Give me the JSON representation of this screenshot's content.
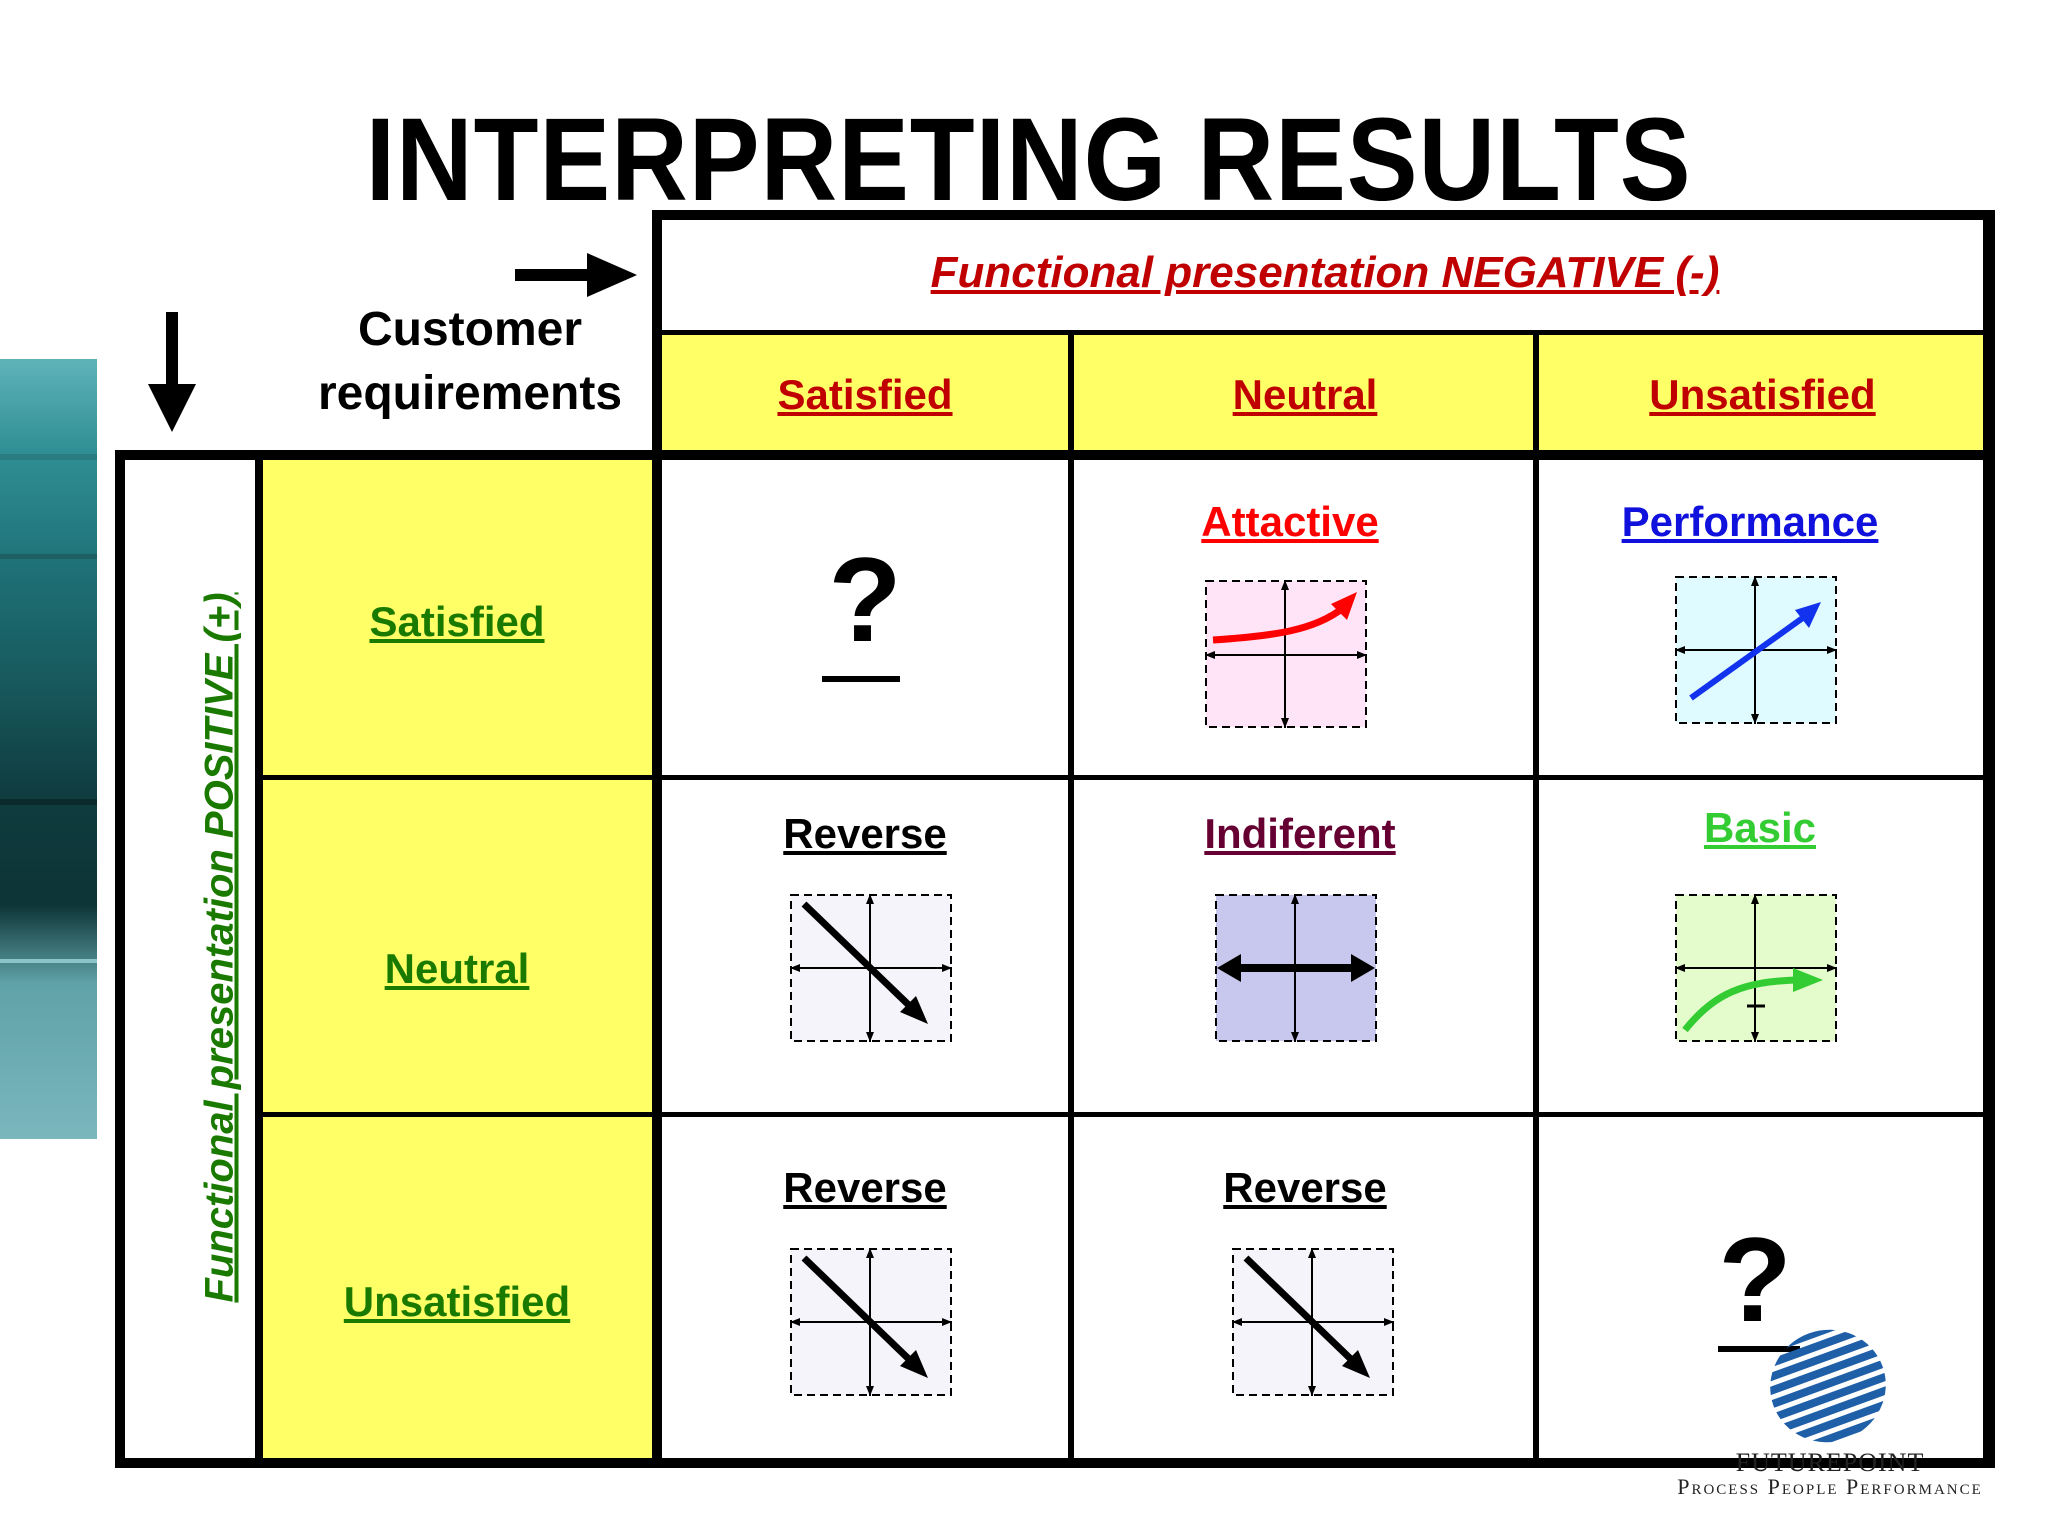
{
  "title": "INTERPRETING RESULTS",
  "corner_label": "Customer requirements",
  "column_header": "Functional presentation NEGATIVE (-)",
  "row_header": "Functional presentation POSITIVE (+)",
  "columns": [
    "Satisfied",
    "Neutral",
    "Unsatisfied"
  ],
  "rows": [
    "Satisfied",
    "Neutral",
    "Unsatisfied"
  ],
  "cells": {
    "r0c0": {
      "label": "?",
      "icon": "question-mark"
    },
    "r0c1": {
      "label": "Attactive ",
      "color": "#ff0000",
      "icon": "exponential-curve-graph"
    },
    "r0c2": {
      "label": "Performance",
      "color": "#1111dd",
      "icon": "linear-rising-graph"
    },
    "r1c0": {
      "label": "Reverse",
      "color": "#000000",
      "icon": "descending-graph"
    },
    "r1c1": {
      "label": "Indiferent",
      "color": "#660033",
      "icon": "horizontal-double-arrow-graph"
    },
    "r1c2": {
      "label": "Basic",
      "color": "#33cc33",
      "icon": "saturating-curve-graph"
    },
    "r2c0": {
      "label": "Reverse",
      "color": "#000000",
      "icon": "descending-graph"
    },
    "r2c1": {
      "label": "Reverse",
      "color": "#000000",
      "icon": "descending-graph"
    },
    "r2c2": {
      "label": "?",
      "icon": "question-mark"
    }
  },
  "logo": {
    "name": "FUTUREPOINT",
    "tagline": "Process People Performance",
    "icon": "striped-globe-logo"
  },
  "colors": {
    "header_yellow": "#ffff66",
    "negative_red": "#c00000",
    "positive_green": "#1a7a00"
  }
}
